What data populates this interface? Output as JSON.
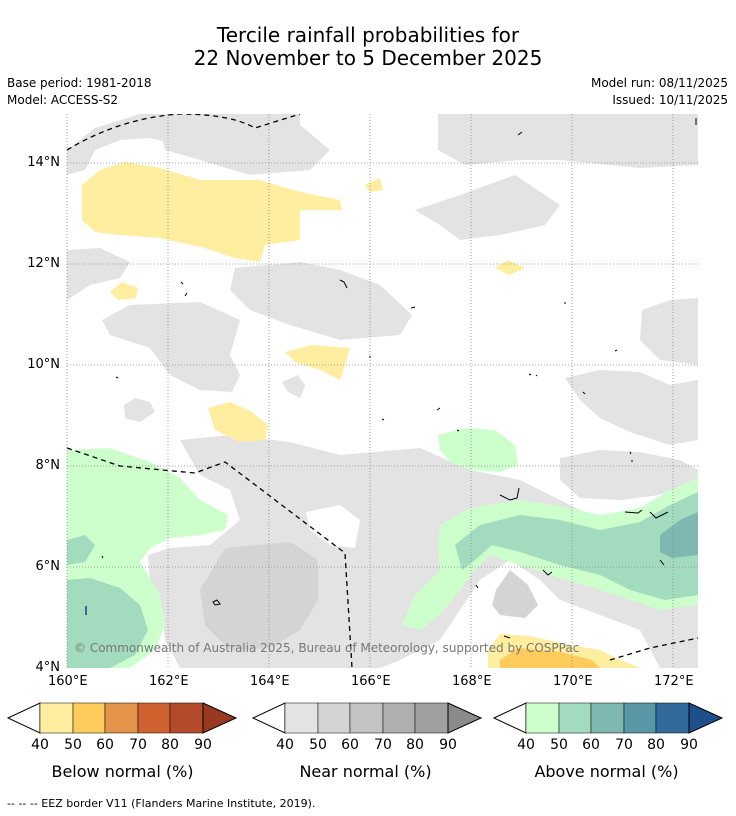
{
  "title": {
    "line1": "Tercile rainfall probabilities for",
    "line2": "22 November to 5 December 2025"
  },
  "meta": {
    "base_period": "Base period: 1981-2018",
    "model": "Model: ACCESS-S2",
    "model_run": "Model run: 08/11/2025",
    "issued": "Issued: 10/11/2025"
  },
  "axes": {
    "lat_labels": [
      "14°N",
      "12°N",
      "10°N",
      "8°N",
      "6°N",
      "4°N"
    ],
    "lon_labels": [
      "160°E",
      "162°E",
      "164°E",
      "166°E",
      "168°E",
      "170°E",
      "172°E"
    ]
  },
  "copyright": "© Commonwealth of Australia 2025, Bureau of Meteorology, supported by COSPPac",
  "legends": [
    {
      "title": "Below normal (%)",
      "ticks": [
        "40",
        "50",
        "60",
        "70",
        "80",
        "90"
      ],
      "colors": [
        "#ffeda0",
        "#fecc5c",
        "#e3944a",
        "#d0622f",
        "#b34a29",
        "#993a20"
      ]
    },
    {
      "title": "Near normal (%)",
      "ticks": [
        "40",
        "50",
        "60",
        "70",
        "80",
        "90"
      ],
      "colors": [
        "#e3e3e3",
        "#d4d4d4",
        "#c3c3c3",
        "#b0b0b0",
        "#a0a0a0",
        "#8a8a8a"
      ]
    },
    {
      "title": "Above normal (%)",
      "ticks": [
        "40",
        "50",
        "60",
        "70",
        "80",
        "90"
      ],
      "colors": [
        "#ccffcc",
        "#a3dbbf",
        "#7fb8b0",
        "#5a97a6",
        "#336a9c",
        "#1f4e8c"
      ]
    }
  ],
  "footnote": "--  --  -- EEZ border V11 (Flanders Marine Institute, 2019)."
}
